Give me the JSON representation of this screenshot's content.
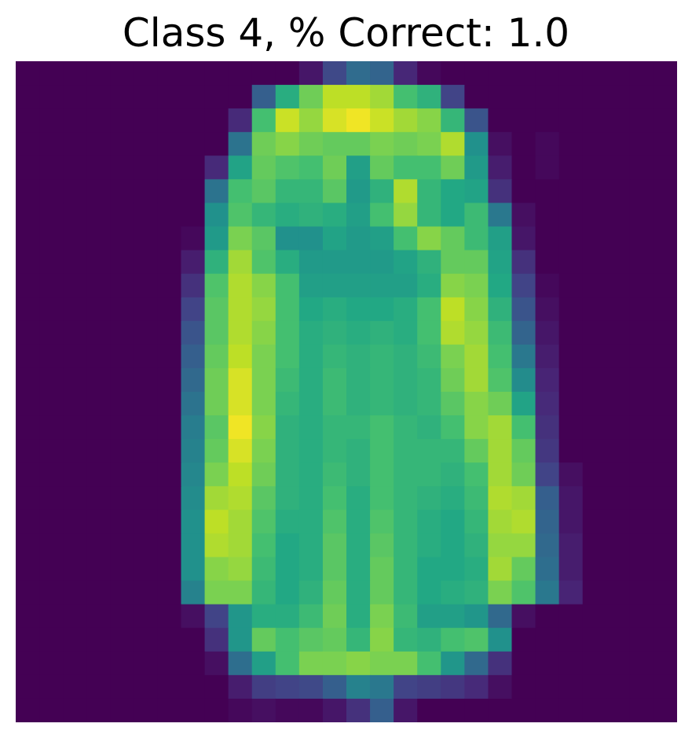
{
  "title": "Class 4, % Correct: 1.0",
  "chart_data": {
    "type": "heatmap",
    "title": "Class 4, % Correct: 1.0",
    "xlabel": "",
    "ylabel": "",
    "axes_visible": false,
    "grid": false,
    "colormap": "viridis",
    "vmin": 0,
    "vmax": 1,
    "rows": 28,
    "cols": 28,
    "values": [
      [
        0.0,
        0.0,
        0.0,
        0.0,
        0.0,
        0.0,
        0.0,
        0.0,
        0.0,
        0.0,
        0.0,
        0.0,
        0.06,
        0.22,
        0.35,
        0.32,
        0.11,
        0.02,
        0.0,
        0.0,
        0.0,
        0.0,
        0.0,
        0.0,
        0.0,
        0.0,
        0.0,
        0.0
      ],
      [
        0.0,
        0.0,
        0.0,
        0.0,
        0.0,
        0.0,
        0.0,
        0.0,
        0.0,
        0.0,
        0.3,
        0.62,
        0.78,
        0.9,
        0.9,
        0.86,
        0.7,
        0.64,
        0.2,
        0.0,
        0.0,
        0.0,
        0.0,
        0.0,
        0.0,
        0.0,
        0.0,
        0.0
      ],
      [
        0.0,
        0.0,
        0.0,
        0.0,
        0.0,
        0.0,
        0.0,
        0.0,
        0.0,
        0.12,
        0.7,
        0.92,
        0.84,
        0.94,
        0.98,
        0.92,
        0.86,
        0.82,
        0.66,
        0.26,
        0.0,
        0.0,
        0.0,
        0.0,
        0.0,
        0.0,
        0.0,
        0.0
      ],
      [
        0.0,
        0.0,
        0.0,
        0.0,
        0.0,
        0.0,
        0.0,
        0.0,
        0.0,
        0.38,
        0.78,
        0.82,
        0.78,
        0.76,
        0.76,
        0.8,
        0.78,
        0.8,
        0.88,
        0.5,
        0.04,
        0.0,
        0.02,
        0.0,
        0.0,
        0.0,
        0.0,
        0.0
      ],
      [
        0.0,
        0.0,
        0.0,
        0.0,
        0.0,
        0.0,
        0.0,
        0.0,
        0.12,
        0.58,
        0.76,
        0.72,
        0.7,
        0.78,
        0.56,
        0.76,
        0.7,
        0.7,
        0.78,
        0.54,
        0.08,
        0.0,
        0.02,
        0.0,
        0.0,
        0.0,
        0.0,
        0.0
      ],
      [
        0.0,
        0.0,
        0.0,
        0.0,
        0.0,
        0.0,
        0.0,
        0.0,
        0.38,
        0.7,
        0.74,
        0.66,
        0.66,
        0.74,
        0.54,
        0.64,
        0.88,
        0.66,
        0.6,
        0.58,
        0.14,
        0.0,
        0.0,
        0.0,
        0.0,
        0.0,
        0.0,
        0.0
      ],
      [
        0.0,
        0.0,
        0.0,
        0.0,
        0.0,
        0.0,
        0.0,
        0.0,
        0.5,
        0.72,
        0.66,
        0.62,
        0.64,
        0.62,
        0.56,
        0.7,
        0.84,
        0.66,
        0.6,
        0.68,
        0.4,
        0.04,
        0.0,
        0.0,
        0.0,
        0.0,
        0.0,
        0.0
      ],
      [
        0.0,
        0.0,
        0.0,
        0.0,
        0.0,
        0.0,
        0.0,
        0.02,
        0.54,
        0.8,
        0.74,
        0.5,
        0.5,
        0.58,
        0.54,
        0.56,
        0.7,
        0.82,
        0.76,
        0.68,
        0.56,
        0.06,
        0.0,
        0.0,
        0.0,
        0.0,
        0.0,
        0.0
      ],
      [
        0.0,
        0.0,
        0.0,
        0.0,
        0.0,
        0.0,
        0.0,
        0.08,
        0.64,
        0.86,
        0.72,
        0.62,
        0.54,
        0.54,
        0.54,
        0.54,
        0.58,
        0.64,
        0.76,
        0.76,
        0.58,
        0.14,
        0.0,
        0.0,
        0.0,
        0.0,
        0.0,
        0.0
      ],
      [
        0.0,
        0.0,
        0.0,
        0.0,
        0.0,
        0.0,
        0.0,
        0.14,
        0.72,
        0.88,
        0.82,
        0.7,
        0.56,
        0.56,
        0.56,
        0.56,
        0.56,
        0.62,
        0.82,
        0.8,
        0.6,
        0.2,
        0.02,
        0.0,
        0.0,
        0.0,
        0.0,
        0.0
      ],
      [
        0.0,
        0.0,
        0.0,
        0.0,
        0.0,
        0.0,
        0.0,
        0.2,
        0.74,
        0.88,
        0.84,
        0.7,
        0.6,
        0.62,
        0.6,
        0.6,
        0.62,
        0.7,
        0.9,
        0.82,
        0.64,
        0.26,
        0.04,
        0.0,
        0.0,
        0.0,
        0.0,
        0.0
      ],
      [
        0.0,
        0.0,
        0.0,
        0.0,
        0.0,
        0.0,
        0.0,
        0.26,
        0.74,
        0.88,
        0.82,
        0.7,
        0.62,
        0.64,
        0.62,
        0.64,
        0.62,
        0.7,
        0.88,
        0.84,
        0.68,
        0.32,
        0.06,
        0.0,
        0.0,
        0.0,
        0.0,
        0.0
      ],
      [
        0.0,
        0.0,
        0.0,
        0.0,
        0.0,
        0.0,
        0.0,
        0.3,
        0.76,
        0.9,
        0.8,
        0.7,
        0.62,
        0.66,
        0.64,
        0.66,
        0.64,
        0.68,
        0.8,
        0.86,
        0.7,
        0.4,
        0.08,
        0.0,
        0.0,
        0.0,
        0.0,
        0.0
      ],
      [
        0.0,
        0.0,
        0.0,
        0.0,
        0.0,
        0.0,
        0.0,
        0.34,
        0.78,
        0.94,
        0.8,
        0.68,
        0.62,
        0.68,
        0.64,
        0.66,
        0.64,
        0.66,
        0.78,
        0.86,
        0.72,
        0.48,
        0.1,
        0.0,
        0.0,
        0.0,
        0.0,
        0.0
      ],
      [
        0.0,
        0.0,
        0.0,
        0.0,
        0.0,
        0.0,
        0.0,
        0.38,
        0.78,
        0.94,
        0.8,
        0.66,
        0.62,
        0.68,
        0.64,
        0.66,
        0.64,
        0.66,
        0.74,
        0.82,
        0.78,
        0.58,
        0.12,
        0.0,
        0.0,
        0.0,
        0.0,
        0.0
      ],
      [
        0.0,
        0.0,
        0.0,
        0.0,
        0.0,
        0.0,
        0.0,
        0.42,
        0.74,
        0.98,
        0.82,
        0.64,
        0.62,
        0.66,
        0.66,
        0.7,
        0.66,
        0.64,
        0.7,
        0.82,
        0.86,
        0.7,
        0.14,
        0.0,
        0.0,
        0.0,
        0.0,
        0.0
      ],
      [
        0.0,
        0.0,
        0.0,
        0.0,
        0.0,
        0.0,
        0.0,
        0.44,
        0.76,
        0.94,
        0.8,
        0.64,
        0.62,
        0.66,
        0.64,
        0.7,
        0.66,
        0.66,
        0.66,
        0.76,
        0.86,
        0.76,
        0.16,
        0.0,
        0.0,
        0.0,
        0.0,
        0.0
      ],
      [
        0.0,
        0.0,
        0.0,
        0.0,
        0.0,
        0.0,
        0.0,
        0.46,
        0.8,
        0.9,
        0.78,
        0.64,
        0.62,
        0.68,
        0.64,
        0.7,
        0.66,
        0.66,
        0.64,
        0.7,
        0.86,
        0.78,
        0.2,
        0.04,
        0.0,
        0.0,
        0.0,
        0.0
      ],
      [
        0.0,
        0.0,
        0.0,
        0.0,
        0.0,
        0.0,
        0.0,
        0.48,
        0.86,
        0.88,
        0.74,
        0.64,
        0.62,
        0.7,
        0.62,
        0.7,
        0.66,
        0.64,
        0.62,
        0.68,
        0.88,
        0.86,
        0.3,
        0.06,
        0.0,
        0.0,
        0.0,
        0.0
      ],
      [
        0.0,
        0.0,
        0.0,
        0.0,
        0.0,
        0.0,
        0.0,
        0.5,
        0.9,
        0.86,
        0.72,
        0.62,
        0.62,
        0.72,
        0.62,
        0.72,
        0.66,
        0.62,
        0.6,
        0.66,
        0.86,
        0.88,
        0.32,
        0.06,
        0.0,
        0.0,
        0.0,
        0.0
      ],
      [
        0.0,
        0.0,
        0.0,
        0.0,
        0.0,
        0.0,
        0.0,
        0.5,
        0.88,
        0.86,
        0.7,
        0.6,
        0.62,
        0.74,
        0.62,
        0.74,
        0.66,
        0.62,
        0.6,
        0.64,
        0.84,
        0.84,
        0.34,
        0.08,
        0.0,
        0.0,
        0.0,
        0.0
      ],
      [
        0.0,
        0.0,
        0.0,
        0.0,
        0.0,
        0.0,
        0.0,
        0.5,
        0.82,
        0.84,
        0.68,
        0.6,
        0.62,
        0.74,
        0.62,
        0.76,
        0.66,
        0.6,
        0.6,
        0.62,
        0.86,
        0.76,
        0.36,
        0.08,
        0.0,
        0.0,
        0.0,
        0.0
      ],
      [
        0.0,
        0.0,
        0.0,
        0.0,
        0.0,
        0.0,
        0.0,
        0.44,
        0.8,
        0.8,
        0.66,
        0.6,
        0.64,
        0.76,
        0.62,
        0.76,
        0.66,
        0.6,
        0.62,
        0.64,
        0.8,
        0.72,
        0.4,
        0.1,
        0.0,
        0.0,
        0.0,
        0.0
      ],
      [
        0.0,
        0.0,
        0.0,
        0.0,
        0.0,
        0.0,
        0.0,
        0.04,
        0.2,
        0.52,
        0.62,
        0.62,
        0.68,
        0.78,
        0.62,
        0.8,
        0.68,
        0.56,
        0.56,
        0.52,
        0.34,
        0.04,
        0.0,
        0.0,
        0.0,
        0.0,
        0.0,
        0.0
      ],
      [
        0.0,
        0.0,
        0.0,
        0.0,
        0.0,
        0.0,
        0.0,
        0.0,
        0.14,
        0.52,
        0.76,
        0.7,
        0.74,
        0.76,
        0.66,
        0.82,
        0.66,
        0.64,
        0.7,
        0.72,
        0.5,
        0.0,
        0.0,
        0.0,
        0.0,
        0.0,
        0.0,
        0.0
      ],
      [
        0.0,
        0.0,
        0.0,
        0.0,
        0.0,
        0.0,
        0.0,
        0.0,
        0.04,
        0.36,
        0.56,
        0.7,
        0.8,
        0.8,
        0.82,
        0.8,
        0.8,
        0.7,
        0.52,
        0.34,
        0.14,
        0.0,
        0.0,
        0.0,
        0.0,
        0.0,
        0.0,
        0.0
      ],
      [
        0.0,
        0.0,
        0.0,
        0.0,
        0.0,
        0.0,
        0.0,
        0.0,
        0.0,
        0.08,
        0.18,
        0.2,
        0.22,
        0.3,
        0.44,
        0.4,
        0.2,
        0.18,
        0.16,
        0.12,
        0.04,
        0.0,
        0.0,
        0.0,
        0.0,
        0.0,
        0.0,
        0.0
      ],
      [
        0.0,
        0.0,
        0.0,
        0.0,
        0.0,
        0.0,
        0.0,
        0.0,
        0.0,
        0.02,
        0.04,
        0.02,
        0.02,
        0.06,
        0.14,
        0.3,
        0.06,
        0.0,
        0.0,
        0.0,
        0.0,
        0.0,
        0.0,
        0.0,
        0.0,
        0.0,
        0.0,
        0.0
      ]
    ]
  }
}
